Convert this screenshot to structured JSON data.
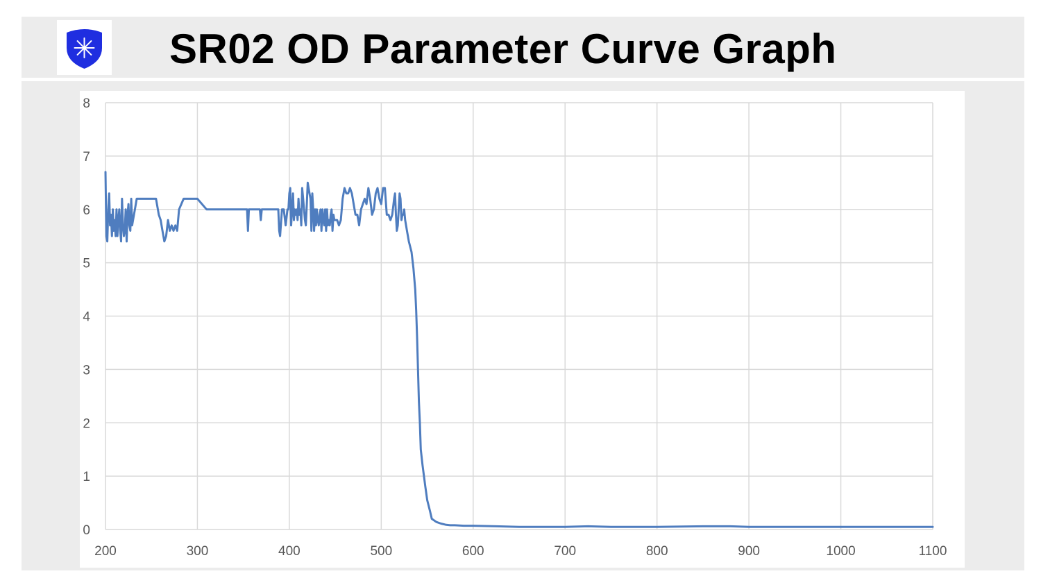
{
  "header": {
    "title": "SR02 OD Parameter Curve Graph",
    "logo_icon": "shield-star-icon",
    "logo_color": "#1f2ee0"
  },
  "colors": {
    "line": "#4f7dbf",
    "grid": "#d9d9d9",
    "background_band": "#ececec"
  },
  "chart_data": {
    "type": "line",
    "title": "",
    "xlabel": "",
    "ylabel": "",
    "xlim": [
      200,
      1100
    ],
    "ylim": [
      0,
      8
    ],
    "x_ticks": [
      200,
      300,
      400,
      500,
      600,
      700,
      800,
      900,
      1000,
      1100
    ],
    "y_ticks": [
      0,
      1,
      2,
      3,
      4,
      5,
      6,
      7,
      8
    ],
    "grid": true,
    "legend": "none",
    "series": [
      {
        "x": [
          200,
          201,
          202,
          203,
          204,
          205,
          206,
          207,
          208,
          209,
          210,
          211,
          212,
          213,
          214,
          215,
          216,
          217,
          218,
          219,
          220,
          221,
          222,
          223,
          224,
          225,
          226,
          227,
          228,
          229,
          230,
          232,
          234,
          236,
          238,
          240,
          245,
          250,
          255,
          258,
          260,
          262,
          264,
          266,
          268,
          270,
          272,
          274,
          276,
          278,
          280,
          285,
          290,
          295,
          300,
          310,
          320,
          330,
          340,
          350,
          354,
          355,
          356,
          357,
          360,
          365,
          368,
          369,
          370,
          372,
          375,
          380,
          385,
          388,
          389,
          390,
          392,
          394,
          396,
          398,
          399,
          400,
          401,
          402,
          403,
          404,
          405,
          406,
          407,
          408,
          409,
          410,
          411,
          412,
          413,
          414,
          415,
          416,
          417,
          418,
          419,
          420,
          421,
          422,
          423,
          424,
          425,
          426,
          427,
          428,
          429,
          430,
          431,
          432,
          433,
          434,
          435,
          436,
          437,
          438,
          439,
          440,
          441,
          442,
          443,
          444,
          445,
          446,
          447,
          448,
          449,
          450,
          452,
          454,
          456,
          458,
          460,
          462,
          464,
          466,
          468,
          470,
          472,
          474,
          476,
          478,
          480,
          482,
          484,
          486,
          488,
          490,
          492,
          494,
          496,
          498,
          500,
          502,
          504,
          506,
          508,
          510,
          512,
          514,
          515,
          516,
          517,
          518,
          519,
          520,
          521,
          522,
          523,
          524,
          525,
          526,
          527,
          528,
          530,
          533,
          535,
          537,
          538,
          539,
          540,
          541,
          542,
          543,
          545,
          548,
          550,
          553,
          555,
          560,
          565,
          570,
          575,
          580,
          590,
          600,
          625,
          650,
          700,
          725,
          750,
          800,
          850,
          880,
          900,
          950,
          1000,
          1050,
          1100
        ],
        "y": [
          6.7,
          5.5,
          5.4,
          6.0,
          6.3,
          5.7,
          5.9,
          5.5,
          6.0,
          5.6,
          5.8,
          5.5,
          6.0,
          5.5,
          5.8,
          6.0,
          5.6,
          5.4,
          6.2,
          5.7,
          5.5,
          5.6,
          6.0,
          5.4,
          5.9,
          6.1,
          5.7,
          5.6,
          6.2,
          5.7,
          5.8,
          6.0,
          6.2,
          6.2,
          6.2,
          6.2,
          6.2,
          6.2,
          6.2,
          5.9,
          5.8,
          5.6,
          5.4,
          5.5,
          5.8,
          5.6,
          5.7,
          5.6,
          5.7,
          5.6,
          6.0,
          6.2,
          6.2,
          6.2,
          6.2,
          6.0,
          6.0,
          6.0,
          6.0,
          6.0,
          6.0,
          5.6,
          6.0,
          6.0,
          6.0,
          6.0,
          6.0,
          5.8,
          6.0,
          6.0,
          6.0,
          6.0,
          6.0,
          6.0,
          5.6,
          5.5,
          6.0,
          6.0,
          5.7,
          6.0,
          6.0,
          6.3,
          6.4,
          5.7,
          6.0,
          6.3,
          5.8,
          6.0,
          5.9,
          6.0,
          5.8,
          6.2,
          5.9,
          6.0,
          5.7,
          6.4,
          6.2,
          6.0,
          5.8,
          5.7,
          6.1,
          6.5,
          6.4,
          6.3,
          6.2,
          5.6,
          6.3,
          6.0,
          5.6,
          6.0,
          5.7,
          6.0,
          5.8,
          5.7,
          5.9,
          6.0,
          5.6,
          6.0,
          5.8,
          5.7,
          6.0,
          5.6,
          6.0,
          5.7,
          5.8,
          5.7,
          5.9,
          6.0,
          5.6,
          5.9,
          5.8,
          5.8,
          5.8,
          5.7,
          5.8,
          6.2,
          6.4,
          6.3,
          6.3,
          6.4,
          6.3,
          6.1,
          5.9,
          5.9,
          5.7,
          6.0,
          6.1,
          6.2,
          6.1,
          6.4,
          6.2,
          5.9,
          6.0,
          6.3,
          6.4,
          6.2,
          6.1,
          6.4,
          6.4,
          5.9,
          5.9,
          5.8,
          5.9,
          6.2,
          6.3,
          5.9,
          5.6,
          5.7,
          6.0,
          6.3,
          6.2,
          5.8,
          5.9,
          5.9,
          6.0,
          5.8,
          5.7,
          5.6,
          5.4,
          5.2,
          4.9,
          4.5,
          4.1,
          3.6,
          3.0,
          2.4,
          2.0,
          1.5,
          1.2,
          0.8,
          0.55,
          0.35,
          0.2,
          0.14,
          0.11,
          0.09,
          0.08,
          0.08,
          0.07,
          0.07,
          0.06,
          0.05,
          0.05,
          0.06,
          0.05,
          0.05,
          0.06,
          0.06,
          0.05,
          0.05,
          0.05,
          0.05,
          0.05
        ]
      }
    ]
  }
}
